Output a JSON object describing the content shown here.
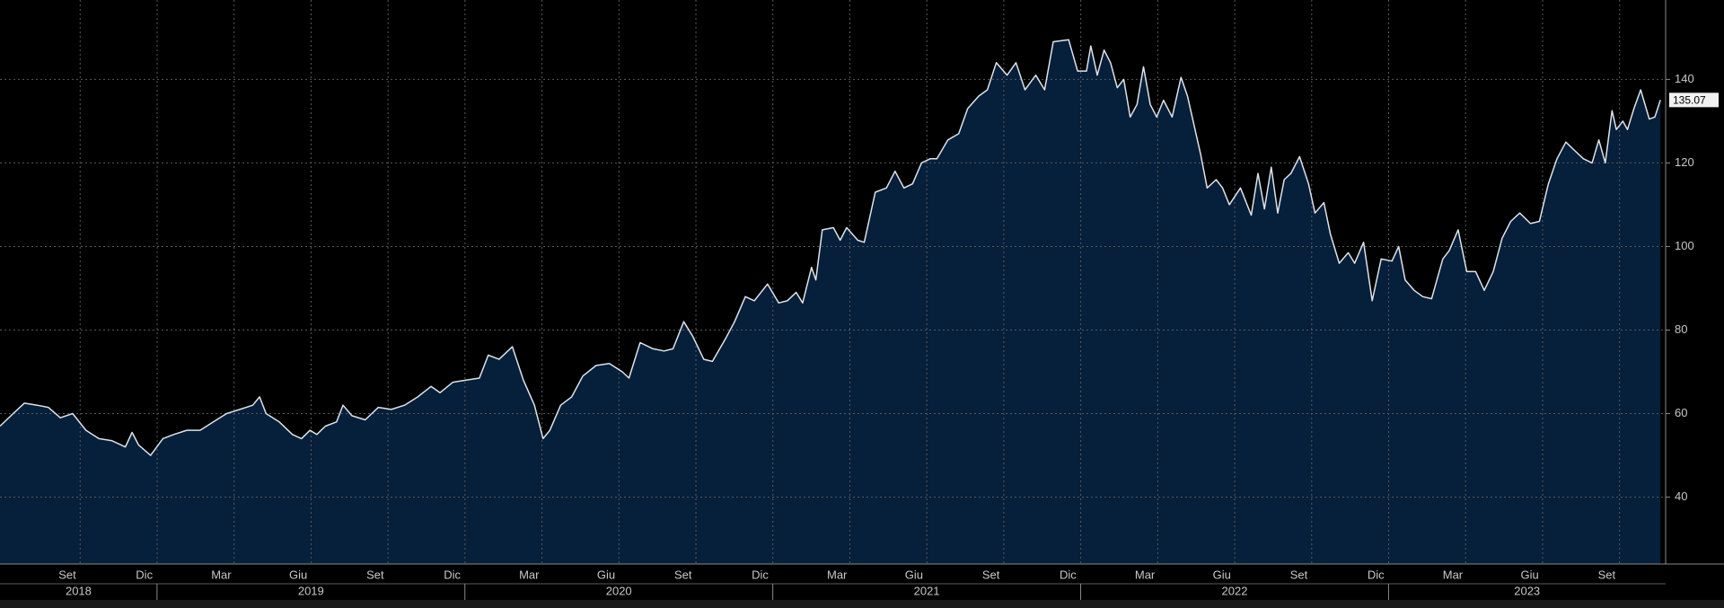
{
  "chart_data": {
    "type": "area",
    "x": [
      2018.49,
      2018.533,
      2018.569,
      2018.611,
      2018.647,
      2018.686,
      2018.726,
      2018.769,
      2018.811,
      2018.854,
      2018.897,
      2018.919,
      2018.94,
      2018.979,
      2019.019,
      2019.054,
      2019.097,
      2019.14,
      2019.183,
      2019.226,
      2019.269,
      2019.311,
      2019.333,
      2019.354,
      2019.397,
      2019.44,
      2019.469,
      2019.497,
      2019.519,
      2019.547,
      2019.583,
      2019.604,
      2019.633,
      2019.676,
      2019.719,
      2019.761,
      2019.804,
      2019.847,
      2019.89,
      2019.919,
      2019.961,
      2020.004,
      2020.047,
      2020.076,
      2020.111,
      2020.154,
      2020.19,
      2020.226,
      2020.254,
      2020.276,
      2020.311,
      2020.347,
      2020.383,
      2020.426,
      2020.469,
      2020.511,
      2020.533,
      2020.569,
      2020.611,
      2020.647,
      2020.676,
      2020.711,
      2020.74,
      2020.776,
      2020.804,
      2020.847,
      2020.876,
      2020.911,
      2020.94,
      2020.983,
      2021.019,
      2021.047,
      2021.076,
      2021.097,
      2021.126,
      2021.14,
      2021.161,
      2021.197,
      2021.219,
      2021.24,
      2021.276,
      2021.297,
      2021.333,
      2021.369,
      2021.397,
      2021.426,
      2021.454,
      2021.483,
      2021.511,
      2021.533,
      2021.569,
      2021.604,
      2021.633,
      2021.669,
      2021.697,
      2021.726,
      2021.761,
      2021.79,
      2021.819,
      2021.854,
      2021.883,
      2021.911,
      2021.961,
      2021.99,
      2022.019,
      2022.033,
      2022.054,
      2022.076,
      2022.097,
      2022.119,
      2022.14,
      2022.161,
      2022.183,
      2022.204,
      2022.226,
      2022.247,
      2022.269,
      2022.297,
      2022.326,
      2022.347,
      2022.39,
      2022.411,
      2022.44,
      2022.461,
      2022.483,
      2022.519,
      2022.554,
      2022.576,
      2022.597,
      2022.619,
      2022.64,
      2022.661,
      2022.683,
      2022.711,
      2022.74,
      2022.761,
      2022.79,
      2022.811,
      2022.84,
      2022.869,
      2022.89,
      2022.919,
      2022.947,
      2022.976,
      2023.011,
      2023.033,
      2023.054,
      2023.083,
      2023.111,
      2023.14,
      2023.176,
      2023.197,
      2023.226,
      2023.254,
      2023.283,
      2023.311,
      2023.34,
      2023.369,
      2023.397,
      2023.426,
      2023.461,
      2023.49,
      2023.519,
      2023.547,
      2023.576,
      2023.604,
      2023.633,
      2023.661,
      2023.683,
      2023.704,
      2023.726,
      2023.74,
      2023.761,
      2023.776,
      2023.797,
      2023.819,
      2023.847,
      2023.865,
      2023.883
    ],
    "values": [
      57,
      60,
      62.5,
      62,
      61.5,
      59,
      60,
      56,
      54,
      53.5,
      52,
      55.5,
      52.5,
      50,
      54,
      55,
      56,
      56,
      58,
      60,
      61,
      62,
      64,
      60,
      58,
      55,
      54,
      56,
      55,
      57,
      58,
      62,
      59.5,
      58.5,
      61.5,
      61,
      62,
      64,
      66.5,
      65,
      67.5,
      68,
      68.5,
      74,
      73,
      76,
      68,
      62,
      54,
      56,
      62,
      64,
      69,
      71.5,
      72,
      70,
      68.5,
      77,
      75.5,
      75,
      75.5,
      82,
      78.5,
      73,
      72.5,
      78,
      82,
      88,
      87,
      91,
      86.5,
      87,
      89,
      86.5,
      95,
      92,
      104,
      104.5,
      101.5,
      104.5,
      101.5,
      101,
      113,
      114,
      118,
      114,
      115,
      120,
      121,
      121,
      125.5,
      127,
      133,
      136,
      137.5,
      144,
      141,
      144,
      137.5,
      141,
      137.5,
      149,
      149.5,
      142,
      142,
      148,
      141,
      147,
      144,
      138,
      140,
      131,
      134,
      143,
      134,
      131,
      135,
      131,
      140.5,
      136,
      122,
      114,
      116,
      114,
      110,
      114,
      107.5,
      117.5,
      109,
      119,
      108,
      116,
      117.5,
      121.5,
      115,
      108,
      110.5,
      103,
      96,
      98.5,
      96,
      101,
      87,
      97,
      96.5,
      100,
      92,
      89.5,
      88,
      87.5,
      97,
      99,
      104,
      94,
      94,
      89.5,
      94,
      102,
      106,
      108,
      105.5,
      106,
      115,
      121,
      125,
      123,
      121,
      120,
      125.5,
      120,
      132.5,
      128,
      130,
      128,
      133,
      137.5,
      130.5,
      131,
      135.07
    ],
    "color": "#061f3b",
    "line_color": "#dfe3e8",
    "xlim": [
      2018.49,
      2023.9
    ],
    "ylim": [
      24,
      159
    ],
    "yticks": [
      40,
      60,
      80,
      100,
      120,
      140
    ],
    "xticks": [
      {
        "value": 2018.667,
        "label": "Set"
      },
      {
        "value": 2018.917,
        "label": "Dic"
      },
      {
        "value": 2019.167,
        "label": "Mar"
      },
      {
        "value": 2019.417,
        "label": "Giu"
      },
      {
        "value": 2019.667,
        "label": "Set"
      },
      {
        "value": 2019.917,
        "label": "Dic"
      },
      {
        "value": 2020.167,
        "label": "Mar"
      },
      {
        "value": 2020.417,
        "label": "Giu"
      },
      {
        "value": 2020.667,
        "label": "Set"
      },
      {
        "value": 2020.917,
        "label": "Dic"
      },
      {
        "value": 2021.167,
        "label": "Mar"
      },
      {
        "value": 2021.417,
        "label": "Giu"
      },
      {
        "value": 2021.667,
        "label": "Set"
      },
      {
        "value": 2021.917,
        "label": "Dic"
      },
      {
        "value": 2022.167,
        "label": "Mar"
      },
      {
        "value": 2022.417,
        "label": "Giu"
      },
      {
        "value": 2022.667,
        "label": "Set"
      },
      {
        "value": 2022.917,
        "label": "Dic"
      },
      {
        "value": 2023.167,
        "label": "Mar"
      },
      {
        "value": 2023.417,
        "label": "Giu"
      },
      {
        "value": 2023.667,
        "label": "Set"
      }
    ],
    "year_ticks": [
      2018,
      2019,
      2020,
      2021,
      2022,
      2023
    ],
    "grid": true
  }
}
